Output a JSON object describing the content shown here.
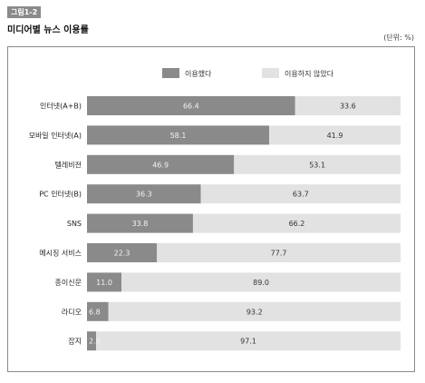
{
  "figure_tag": "그림1-2",
  "title": "미디어별 뉴스 이용률",
  "unit": "(단위: %)",
  "colors": {
    "used": "#8a8a8a",
    "not_used": "#e2e2e2"
  },
  "chart_data": {
    "type": "bar",
    "orientation": "horizontal",
    "stacked": true,
    "categories": [
      "인터넷(A+B)",
      "모바일 인터넷(A)",
      "텔레비전",
      "PC 인터넷(B)",
      "SNS",
      "메시징 서비스",
      "종이신문",
      "라디오",
      "잡지"
    ],
    "series": [
      {
        "name": "이용했다",
        "values": [
          66.4,
          58.1,
          46.9,
          36.3,
          33.8,
          22.3,
          11.0,
          6.8,
          2.9
        ]
      },
      {
        "name": "이용하지 않았다",
        "values": [
          33.6,
          41.9,
          53.1,
          63.7,
          66.2,
          77.7,
          89.0,
          93.2,
          97.1
        ]
      }
    ],
    "value_labels": [
      [
        "66.4",
        "58.1",
        "46.9",
        "36.3",
        "33.8",
        "22.3",
        "11.0",
        "6.8",
        "2.9"
      ],
      [
        "33.6",
        "41.9",
        "53.1",
        "63.7",
        "66.2",
        "77.7",
        "89.0",
        "93.2",
        "97.1"
      ]
    ],
    "xlim": [
      0,
      100
    ],
    "legend_position": "top"
  }
}
